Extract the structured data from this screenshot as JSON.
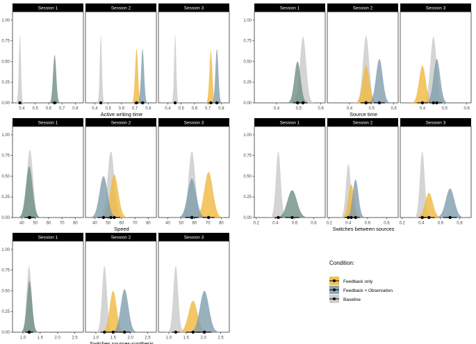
{
  "chart_data": [
    {
      "type": "area",
      "xlabel": "Active writing time",
      "xlim": [
        0.33,
        0.86
      ],
      "xticks": [
        0.4,
        0.5,
        0.6,
        0.7,
        0.8
      ],
      "ylim": [
        0,
        1.1
      ],
      "yticks": [
        "0.00",
        "0.25",
        "0.50",
        "0.75",
        "1.00"
      ],
      "facets": [
        {
          "strip": "Session 1",
          "series": [
            {
              "condition": "baseline",
              "mean": 0.385,
              "sd": 0.008,
              "peak": 0.82,
              "interval": [
                0.375,
                0.395
              ]
            },
            {
              "condition": "fb_obs",
              "mean": 0.645,
              "sd": 0.012,
              "peak": 0.58,
              "interval": [
                0.625,
                0.665
              ]
            }
          ]
        },
        {
          "strip": "Session 2",
          "series": [
            {
              "condition": "baseline",
              "mean": 0.445,
              "sd": 0.008,
              "peak": 0.82,
              "interval": [
                0.435,
                0.455
              ]
            },
            {
              "condition": "fb_only",
              "mean": 0.712,
              "sd": 0.011,
              "peak": 0.65,
              "interval": [
                0.695,
                0.73
              ]
            },
            {
              "condition": "fb_obs",
              "mean": 0.757,
              "sd": 0.011,
              "peak": 0.65,
              "interval": [
                0.74,
                0.775
              ]
            }
          ]
        },
        {
          "strip": "Session 3",
          "series": [
            {
              "condition": "baseline",
              "mean": 0.455,
              "sd": 0.008,
              "peak": 0.82,
              "interval": [
                0.445,
                0.465
              ]
            },
            {
              "condition": "fb_only",
              "mean": 0.722,
              "sd": 0.011,
              "peak": 0.63,
              "interval": [
                0.705,
                0.74
              ]
            },
            {
              "condition": "fb_obs",
              "mean": 0.767,
              "sd": 0.011,
              "peak": 0.65,
              "interval": [
                0.75,
                0.785
              ]
            }
          ]
        }
      ]
    },
    {
      "type": "area",
      "xlabel": "Source time",
      "xlim": [
        0.3,
        0.62
      ],
      "xticks": [
        0.4,
        0.5,
        0.6
      ],
      "ylim": [
        0,
        1.1
      ],
      "yticks": [
        "0.00",
        "0.25",
        "0.50",
        "0.75",
        "1.00"
      ],
      "facets": [
        {
          "strip": "Session 1",
          "series": [
            {
              "condition": "baseline",
              "mean": 0.52,
              "sd": 0.014,
              "peak": 0.8,
              "interval": [
                0.5,
                0.54
              ]
            },
            {
              "condition": "fb_obs",
              "mean": 0.495,
              "sd": 0.014,
              "peak": 0.5,
              "interval": [
                0.475,
                0.515
              ]
            }
          ]
        },
        {
          "strip": "Session 2",
          "series": [
            {
              "condition": "baseline",
              "mean": 0.475,
              "sd": 0.014,
              "peak": 0.81,
              "interval": [
                0.455,
                0.495
              ]
            },
            {
              "condition": "fb_only",
              "mean": 0.475,
              "sd": 0.015,
              "peak": 0.45,
              "interval": [
                0.45,
                0.5
              ]
            },
            {
              "condition": "fb_obs",
              "mean": 0.535,
              "sd": 0.015,
              "peak": 0.53,
              "interval": [
                0.51,
                0.56
              ]
            }
          ]
        },
        {
          "strip": "Session 3",
          "series": [
            {
              "condition": "baseline",
              "mean": 0.45,
              "sd": 0.014,
              "peak": 0.8,
              "interval": [
                0.43,
                0.47
              ]
            },
            {
              "condition": "fb_only",
              "mean": 0.4,
              "sd": 0.015,
              "peak": 0.45,
              "interval": [
                0.375,
                0.425
              ]
            },
            {
              "condition": "fb_obs",
              "mean": 0.465,
              "sd": 0.015,
              "peak": 0.53,
              "interval": [
                0.44,
                0.49
              ]
            }
          ]
        }
      ]
    },
    {
      "type": "area",
      "xlabel": "Speed",
      "xlim": [
        33,
        86
      ],
      "xticks": [
        40,
        50,
        60,
        70,
        80
      ],
      "ylim": [
        0,
        1.1
      ],
      "yticks": [
        "0.00",
        "0.25",
        "0.50",
        "0.75",
        "1.00"
      ],
      "facets": [
        {
          "strip": "Session 1",
          "series": [
            {
              "condition": "baseline",
              "mean": 46,
              "sd": 2.3,
              "peak": 0.82,
              "interval": [
                42.5,
                49.5
              ]
            },
            {
              "condition": "fb_obs",
              "mean": 45.5,
              "sd": 2.5,
              "peak": 0.62,
              "interval": [
                42,
                49
              ]
            }
          ]
        },
        {
          "strip": "Session 2",
          "series": [
            {
              "condition": "baseline",
              "mean": 52,
              "sd": 2.5,
              "peak": 0.8,
              "interval": [
                48,
                56
              ]
            },
            {
              "condition": "fb_only",
              "mean": 54.5,
              "sd": 3.0,
              "peak": 0.52,
              "interval": [
                50,
                59
              ]
            },
            {
              "condition": "fb_obs",
              "mean": 46.5,
              "sd": 3.0,
              "peak": 0.5,
              "interval": [
                42,
                51
              ]
            }
          ]
        },
        {
          "strip": "Session 3",
          "series": [
            {
              "condition": "baseline",
              "mean": 58,
              "sd": 2.5,
              "peak": 0.8,
              "interval": [
                54,
                62
              ]
            },
            {
              "condition": "fb_only",
              "mean": 70.5,
              "sd": 3.2,
              "peak": 0.55,
              "interval": [
                66,
                75
              ]
            },
            {
              "condition": "fb_obs",
              "mean": 58,
              "sd": 3.2,
              "peak": 0.47,
              "interval": [
                53,
                63
              ]
            }
          ]
        }
      ]
    },
    {
      "type": "area",
      "xlabel": "Switches between sources",
      "xlim": [
        0.18,
        0.92
      ],
      "xticks": [
        "0.2",
        "0.4",
        "0.6",
        "0.8"
      ],
      "ylim": [
        0,
        1.1
      ],
      "yticks": [
        "0.00",
        "0.25",
        "0.50",
        "0.75",
        "1.00"
      ],
      "facets": [
        {
          "strip": "Session 1",
          "series": [
            {
              "condition": "baseline",
              "mean": 0.43,
              "sd": 0.025,
              "peak": 0.8,
              "interval": [
                0.39,
                0.47
              ]
            },
            {
              "condition": "fb_obs",
              "mean": 0.575,
              "sd": 0.05,
              "peak": 0.33,
              "interval": [
                0.5,
                0.65
              ]
            }
          ]
        },
        {
          "strip": "Session 2",
          "series": [
            {
              "condition": "baseline",
              "mean": 0.4,
              "sd": 0.025,
              "peak": 0.65,
              "interval": [
                0.36,
                0.44
              ]
            },
            {
              "condition": "fb_only",
              "mean": 0.43,
              "sd": 0.03,
              "peak": 0.4,
              "interval": [
                0.38,
                0.48
              ]
            },
            {
              "condition": "fb_obs",
              "mean": 0.475,
              "sd": 0.03,
              "peak": 0.46,
              "interval": [
                0.43,
                0.52
              ]
            }
          ]
        },
        {
          "strip": "Session 3",
          "series": [
            {
              "condition": "baseline",
              "mean": 0.41,
              "sd": 0.025,
              "peak": 0.8,
              "interval": [
                0.37,
                0.45
              ]
            },
            {
              "condition": "fb_only",
              "mean": 0.48,
              "sd": 0.04,
              "peak": 0.3,
              "interval": [
                0.42,
                0.54
              ]
            },
            {
              "condition": "fb_obs",
              "mean": 0.7,
              "sd": 0.045,
              "peak": 0.35,
              "interval": [
                0.63,
                0.77
              ]
            }
          ]
        }
      ]
    },
    {
      "type": "area",
      "xlabel": "Switches sources-synthesis",
      "xlim": [
        0.7,
        2.75
      ],
      "xticks": [
        "1.0",
        "1.5",
        "2.0",
        "2.5"
      ],
      "ylim": [
        0,
        1.1
      ],
      "yticks": [
        "0.00",
        "0.25",
        "0.50",
        "0.75",
        "1.00"
      ],
      "facets": [
        {
          "strip": "Session 1",
          "series": [
            {
              "condition": "baseline",
              "mean": 1.18,
              "sd": 0.07,
              "peak": 0.8,
              "interval": [
                1.07,
                1.29
              ]
            },
            {
              "condition": "fb_obs",
              "mean": 1.19,
              "sd": 0.075,
              "peak": 0.62,
              "interval": [
                1.08,
                1.3
              ]
            }
          ]
        },
        {
          "strip": "Session 2",
          "series": [
            {
              "condition": "baseline",
              "mean": 1.25,
              "sd": 0.07,
              "peak": 0.8,
              "interval": [
                1.14,
                1.36
              ]
            },
            {
              "condition": "fb_only",
              "mean": 1.5,
              "sd": 0.1,
              "peak": 0.5,
              "interval": [
                1.35,
                1.65
              ]
            },
            {
              "condition": "fb_obs",
              "mean": 1.83,
              "sd": 0.11,
              "peak": 0.52,
              "interval": [
                1.66,
                2.0
              ]
            }
          ]
        },
        {
          "strip": "Session 3",
          "series": [
            {
              "condition": "baseline",
              "mean": 1.2,
              "sd": 0.07,
              "peak": 0.8,
              "interval": [
                1.09,
                1.31
              ]
            },
            {
              "condition": "fb_only",
              "mean": 1.7,
              "sd": 0.13,
              "peak": 0.38,
              "interval": [
                1.5,
                1.9
              ]
            },
            {
              "condition": "fb_obs",
              "mean": 2.03,
              "sd": 0.13,
              "peak": 0.5,
              "interval": [
                1.83,
                2.23
              ]
            }
          ]
        }
      ]
    }
  ],
  "legend": {
    "title": "Condition:",
    "items": [
      {
        "key": "fb_only",
        "label": "Feedback only",
        "color": "#f0b840"
      },
      {
        "key": "fb_obs",
        "label": "Feedback + Observation",
        "color": "#7f9cad"
      },
      {
        "key": "baseline",
        "label": "Baseline",
        "color": "#c8c8c8"
      }
    ]
  },
  "styles": {
    "strip_bg": "#000000",
    "strip_text": "#ffffff",
    "point_color": "#000000",
    "baseline_fill": "#cccccc",
    "fb_obs_fill": "#6f8f84",
    "fb_obs_fill_overlap": "#7f9cad",
    "fb_only_fill": "#f0b840"
  }
}
